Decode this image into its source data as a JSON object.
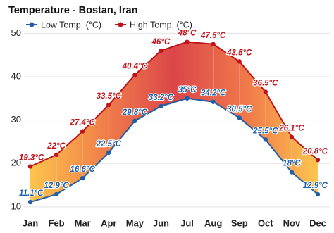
{
  "chart_data": {
    "type": "line",
    "title": "Temperature - Bostan, Iran",
    "categories": [
      "Jan",
      "Feb",
      "Mar",
      "Apr",
      "May",
      "Jun",
      "Jul",
      "Aug",
      "Sep",
      "Oct",
      "Nov",
      "Dec"
    ],
    "series": [
      {
        "name": "Low Temp. (°C)",
        "color": "#1f5fa8",
        "values": [
          11.1,
          12.9,
          16.6,
          22.5,
          29.8,
          33.2,
          35,
          34.2,
          30.5,
          25.5,
          18,
          12.9
        ],
        "value_labels": [
          "11.1°C",
          "12.9°C",
          "16.6°C",
          "22.5°C",
          "29.8°C",
          "33.2°C",
          "35°C",
          "34.2°C",
          "30.5°C",
          "25.5°C",
          "18°C",
          "12.9°C"
        ]
      },
      {
        "name": "High Temp. (°C)",
        "color": "#c0141b",
        "values": [
          19.3,
          22,
          27.4,
          33.5,
          40.4,
          46,
          48,
          47.5,
          43.5,
          36.5,
          26.1,
          20.8
        ],
        "value_labels": [
          "19.3°C",
          "22°C",
          "27.4°C",
          "33.5°C",
          "40.4°C",
          "46°C",
          "48°C",
          "47.5°C",
          "43.5°C",
          "36.5°C",
          "26.1°C",
          "20.8°C"
        ]
      }
    ],
    "ylim": [
      9,
      52
    ],
    "yticks": [
      10,
      20,
      30,
      40,
      50
    ],
    "grid": true,
    "legend": "top-left"
  }
}
